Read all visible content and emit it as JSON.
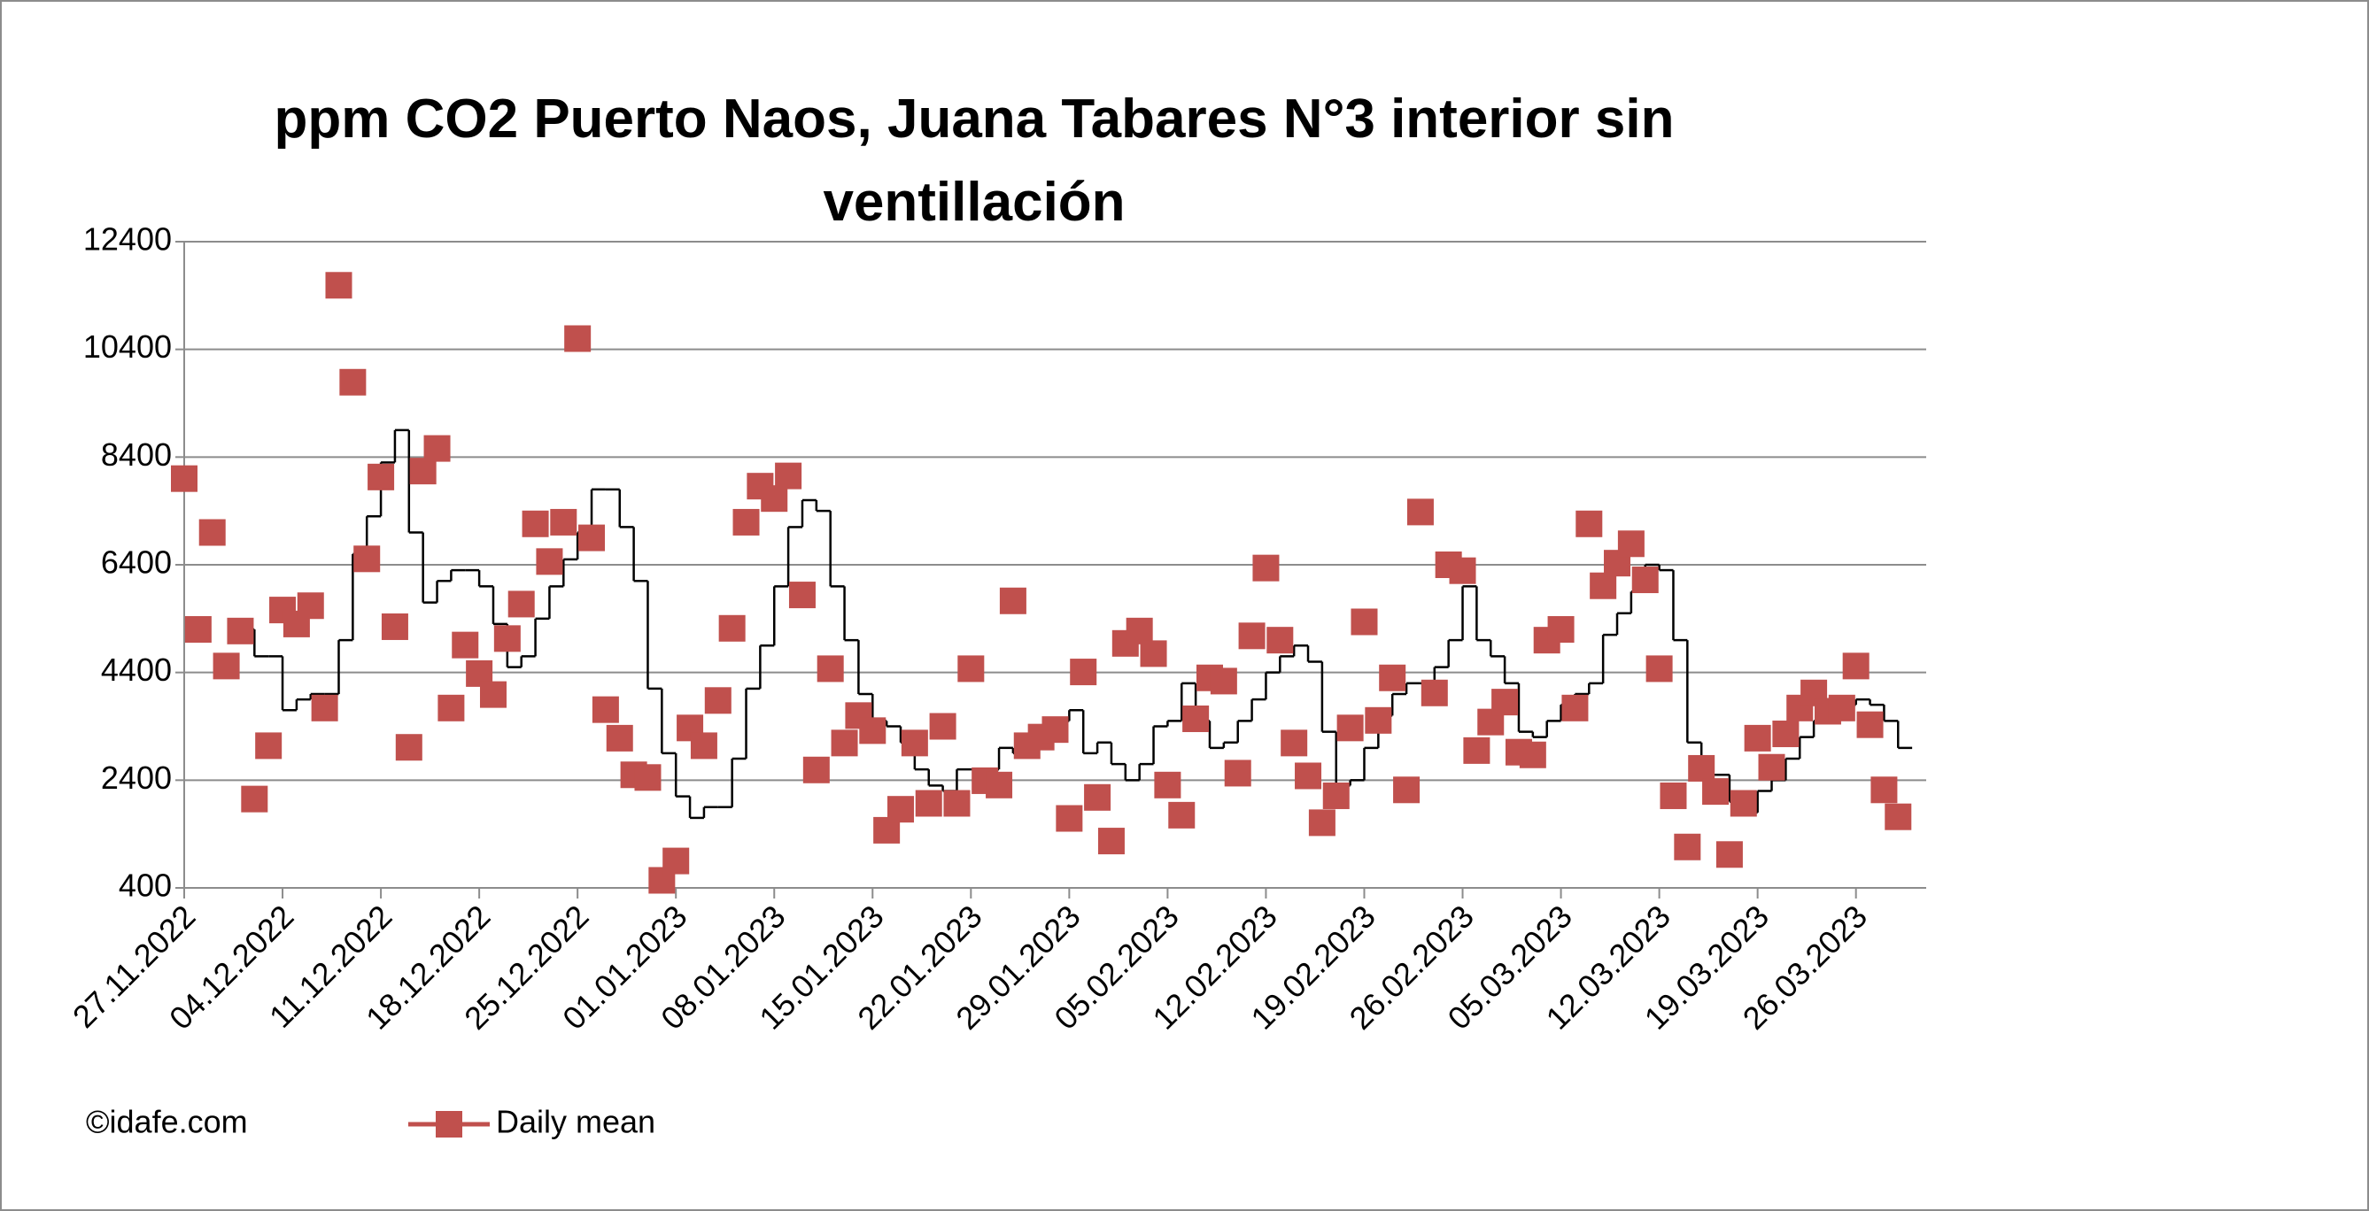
{
  "chart_data": {
    "type": "scatter",
    "title": "ppm CO2 Puerto Naos, Juana Tabares N°3 interior sin ventillación",
    "source": "©idafe.com",
    "x": [
      "27.11.2022",
      "28.11.2022",
      "29.11.2022",
      "30.11.2022",
      "01.12.2022",
      "02.12.2022",
      "03.12.2022",
      "04.12.2022",
      "05.12.2022",
      "06.12.2022",
      "07.12.2022",
      "08.12.2022",
      "09.12.2022",
      "10.12.2022",
      "11.12.2022",
      "12.12.2022",
      "13.12.2022",
      "14.12.2022",
      "15.12.2022",
      "16.12.2022",
      "17.12.2022",
      "18.12.2022",
      "19.12.2022",
      "20.12.2022",
      "21.12.2022",
      "22.12.2022",
      "23.12.2022",
      "24.12.2022",
      "25.12.2022",
      "26.12.2022",
      "27.12.2022",
      "28.12.2022",
      "29.12.2022",
      "30.12.2022",
      "31.12.2022",
      "01.01.2023",
      "02.01.2023",
      "03.01.2023",
      "04.01.2023",
      "05.01.2023",
      "06.01.2023",
      "07.01.2023",
      "08.01.2023",
      "09.01.2023",
      "10.01.2023",
      "11.01.2023",
      "12.01.2023",
      "13.01.2023",
      "14.01.2023",
      "15.01.2023",
      "16.01.2023",
      "17.01.2023",
      "18.01.2023",
      "19.01.2023",
      "20.01.2023",
      "21.01.2023",
      "22.01.2023",
      "23.01.2023",
      "24.01.2023",
      "25.01.2023",
      "26.01.2023",
      "27.01.2023",
      "28.01.2023",
      "29.01.2023",
      "30.01.2023",
      "31.01.2023",
      "01.02.2023",
      "02.02.2023",
      "03.02.2023",
      "04.02.2023",
      "05.02.2023",
      "06.02.2023",
      "07.02.2023",
      "08.02.2023",
      "09.02.2023",
      "10.02.2023",
      "11.02.2023",
      "12.02.2023",
      "13.02.2023",
      "14.02.2023",
      "15.02.2023",
      "16.02.2023",
      "17.02.2023",
      "18.02.2023",
      "19.02.2023",
      "20.02.2023",
      "21.02.2023",
      "22.02.2023",
      "23.02.2023",
      "24.02.2023",
      "25.02.2023",
      "26.02.2023",
      "27.02.2023",
      "28.02.2023",
      "01.03.2023",
      "02.03.2023",
      "03.03.2023",
      "04.03.2023",
      "05.03.2023",
      "06.03.2023",
      "07.03.2023",
      "08.03.2023",
      "09.03.2023",
      "10.03.2023",
      "11.03.2023",
      "12.03.2023",
      "13.03.2023",
      "14.03.2023",
      "15.03.2023",
      "16.03.2023",
      "17.03.2023",
      "18.03.2023",
      "19.03.2023",
      "20.03.2023",
      "21.03.2023",
      "22.03.2023",
      "23.03.2023",
      "24.03.2023",
      "25.03.2023",
      "26.03.2023",
      "27.03.2023",
      "28.03.2023",
      "29.03.2023"
    ],
    "series": [
      {
        "name": "Daily mean",
        "type": "scatter",
        "color": "#c0504d",
        "values": [
          8000,
          5200,
          7000,
          4520,
          5170,
          2050,
          3040,
          5560,
          5300,
          5640,
          3740,
          11590,
          9790,
          6510,
          8030,
          5250,
          3010,
          8140,
          8560,
          3740,
          4910,
          4380,
          3990,
          5030,
          5670,
          7160,
          6460,
          7190,
          10600,
          6900,
          3710,
          3180,
          2500,
          2450,
          540,
          900,
          3370,
          3040,
          3880,
          5220,
          7190,
          7860,
          7630,
          8050,
          5840,
          2590,
          4470,
          3090,
          3600,
          3320,
          1470,
          1860,
          3090,
          1970,
          3400,
          1970,
          4470,
          2390,
          2310,
          5730,
          3040,
          3200,
          3340,
          1690,
          4410,
          2080,
          1270,
          4940,
          5170,
          4750,
          2310,
          1750,
          3540,
          4300,
          4240,
          2530,
          5080,
          6340,
          5000,
          3090,
          2480,
          1610,
          2110,
          3370,
          5340,
          3510,
          4300,
          2220,
          7380,
          4020,
          6400,
          6290,
          2950,
          3480,
          3850,
          2920,
          2870,
          5000,
          5200,
          3740,
          7160,
          6010,
          6430,
          6790,
          6120,
          4470,
          2110,
          1160,
          2620,
          2190,
          1020,
          1970,
          3180,
          2640,
          3260,
          3740,
          4020,
          3680,
          3740,
          4520,
          3430,
          2220,
          1720
        ]
      },
      {
        "type": "step",
        "color": "#000000",
        "values": [
          null,
          null,
          null,
          null,
          5200,
          4700,
          4700,
          3700,
          3900,
          4000,
          4000,
          5000,
          6600,
          7300,
          8300,
          8900,
          7000,
          5700,
          6100,
          6300,
          6300,
          6000,
          5300,
          4500,
          4700,
          5400,
          6000,
          6500,
          7000,
          7800,
          7800,
          7100,
          6100,
          4100,
          2900,
          2100,
          1700,
          1900,
          1900,
          2800,
          4100,
          4900,
          6000,
          7100,
          7600,
          7400,
          6000,
          5000,
          4000,
          3500,
          3400,
          3100,
          2600,
          2300,
          2200,
          2600,
          2600,
          2600,
          3000,
          2900,
          3200,
          3400,
          3500,
          3700,
          2900,
          3100,
          2700,
          2400,
          2700,
          3400,
          3500,
          4200,
          3500,
          3000,
          3100,
          3500,
          3900,
          4400,
          4700,
          4900,
          4600,
          3300,
          2300,
          2400,
          3000,
          3600,
          4000,
          4200,
          4200,
          4500,
          5000,
          6000,
          5000,
          4700,
          4200,
          3300,
          3200,
          3500,
          3800,
          4000,
          4200,
          5100,
          5500,
          5900,
          6400,
          6300,
          5000,
          3100,
          2500,
          2500,
          2000,
          1800,
          2200,
          2400,
          2800,
          3200,
          3500,
          3700,
          3800,
          3900,
          3800,
          3500,
          3000
        ]
      }
    ],
    "xlim": [
      "27.11.2022",
      "31.03.2023"
    ],
    "xticks": [
      "27.11.2022",
      "04.12.2022",
      "11.12.2022",
      "18.12.2022",
      "25.12.2022",
      "01.01.2023",
      "08.01.2023",
      "15.01.2023",
      "22.01.2023",
      "29.01.2023",
      "05.02.2023",
      "12.02.2023",
      "19.02.2023",
      "26.02.2023",
      "05.03.2023",
      "12.03.2023",
      "19.03.2023",
      "26.03.2023"
    ],
    "ylim": [
      400,
      12400
    ],
    "yticks": [
      400,
      2400,
      4400,
      6400,
      8400,
      10400,
      12400
    ],
    "grid": true,
    "legend": "bottom-left"
  }
}
